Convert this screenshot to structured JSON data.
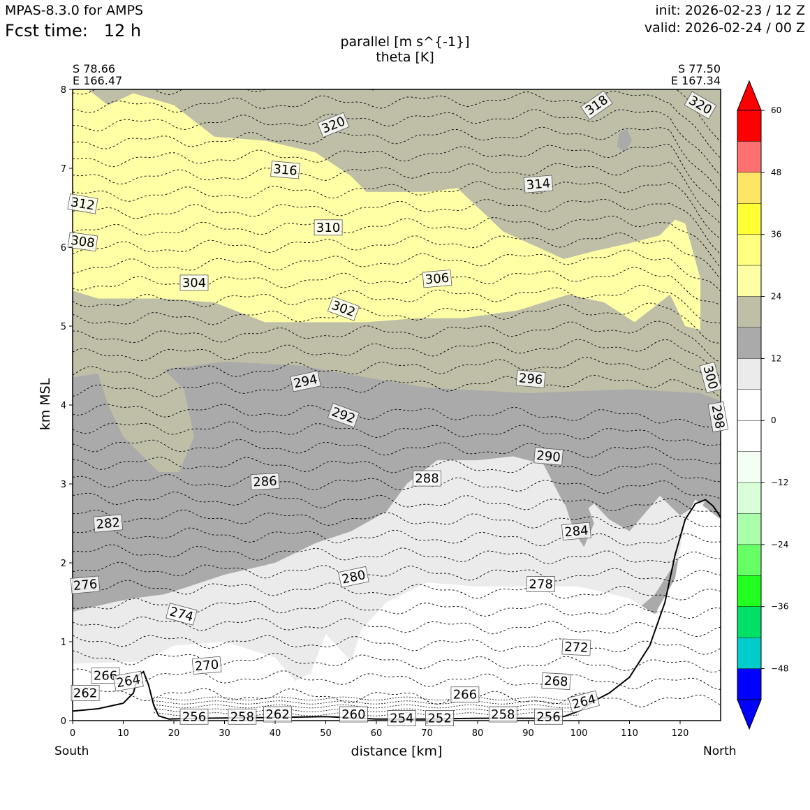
{
  "header": {
    "model": "MPAS-8.3.0 for AMPS",
    "fcst_label": "Fcst time:",
    "fcst_value": "12 h",
    "init": "init: 2026-02-23 / 12 Z",
    "valid": "valid: 2026-02-24 / 00 Z"
  },
  "endpoints": {
    "left_lat": "S 78.66",
    "left_lon": "E 166.47",
    "right_lat": "S 77.50",
    "right_lon": "E 167.34",
    "left_dir": "South",
    "right_dir": "North"
  },
  "colors": {
    "yellow": "#ffffa6",
    "tan": "#bfbfa8",
    "dark_gray": "#aaaaaa",
    "light_gray": "#ebebeb",
    "blue": "#0000ff",
    "red": "#ff0000"
  },
  "chart_data": {
    "type": "contour cross-section",
    "title": "parallel [m s^{-1}]",
    "subtitle": "theta [K]",
    "xlabel": "distance [km]",
    "ylabel": "km MSL",
    "xlim": [
      0,
      128
    ],
    "ylim": [
      0,
      8
    ],
    "xticks": [
      0,
      10,
      20,
      30,
      40,
      50,
      60,
      70,
      80,
      90,
      100,
      110,
      120
    ],
    "yticks": [
      0,
      1,
      2,
      3,
      4,
      5,
      6,
      7,
      8
    ],
    "colorbar": {
      "levels": [
        -54,
        -48,
        -42,
        -36,
        -30,
        -24,
        -18,
        -12,
        -6,
        0,
        6,
        12,
        18,
        24,
        30,
        36,
        42,
        48,
        54,
        60
      ],
      "tick_labels": [
        "60",
        "48",
        "36",
        "24",
        "12",
        "0",
        "−12",
        "−24",
        "−36",
        "−48"
      ],
      "tick_values": [
        60,
        48,
        36,
        24,
        12,
        0,
        -12,
        -24,
        -36,
        -48
      ],
      "colors": [
        "#0000ff",
        "#00cccc",
        "#00e066",
        "#20ff20",
        "#66ff66",
        "#aaffaa",
        "#d8ffd8",
        "#f2fff2",
        "#ffffff",
        "#ffffff",
        "#ebebeb",
        "#aaaaaa",
        "#bfbfa8",
        "#ffffa6",
        "#ffff80",
        "#ffff33",
        "#ffe566",
        "#ff7070",
        "#ff0000"
      ]
    },
    "terrain": [
      [
        0,
        0.12
      ],
      [
        5,
        0.15
      ],
      [
        10,
        0.22
      ],
      [
        12,
        0.35
      ],
      [
        13,
        0.58
      ],
      [
        14,
        0.62
      ],
      [
        15,
        0.45
      ],
      [
        16,
        0.2
      ],
      [
        17,
        0.06
      ],
      [
        19,
        0.02
      ],
      [
        25,
        0.03
      ],
      [
        40,
        0.04
      ],
      [
        50,
        0.05
      ],
      [
        60,
        0.02
      ],
      [
        70,
        0.02
      ],
      [
        80,
        0.03
      ],
      [
        92,
        0.03
      ],
      [
        97,
        0.05
      ],
      [
        100,
        0.12
      ],
      [
        103,
        0.25
      ],
      [
        106,
        0.35
      ],
      [
        110,
        0.55
      ],
      [
        114,
        0.95
      ],
      [
        117,
        1.5
      ],
      [
        119,
        2.1
      ],
      [
        121,
        2.55
      ],
      [
        123,
        2.75
      ],
      [
        125,
        2.8
      ],
      [
        126.5,
        2.72
      ],
      [
        128,
        2.58
      ]
    ],
    "theta_labels": [
      {
        "v": "320",
        "x": 51.5,
        "y": 7.55,
        "r": -22
      },
      {
        "v": "318",
        "x": 103.5,
        "y": 7.8,
        "r": -35
      },
      {
        "v": "320",
        "x": 124,
        "y": 7.8,
        "r": 30
      },
      {
        "v": "316",
        "x": 42,
        "y": 6.98,
        "r": 5
      },
      {
        "v": "314",
        "x": 92,
        "y": 6.8,
        "r": -5
      },
      {
        "v": "312",
        "x": 2,
        "y": 6.55,
        "r": 10
      },
      {
        "v": "310",
        "x": 50.5,
        "y": 6.25,
        "r": 0
      },
      {
        "v": "308",
        "x": 2,
        "y": 6.07,
        "r": 8
      },
      {
        "v": "306",
        "x": 72,
        "y": 5.6,
        "r": -5
      },
      {
        "v": "304",
        "x": 24,
        "y": 5.55,
        "r": 0
      },
      {
        "v": "302",
        "x": 53.5,
        "y": 5.22,
        "r": 20
      },
      {
        "v": "300",
        "x": 126,
        "y": 4.35,
        "r": 75
      },
      {
        "v": "298",
        "x": 127.5,
        "y": 3.85,
        "r": 80
      },
      {
        "v": "296",
        "x": 90.5,
        "y": 4.33,
        "r": 5
      },
      {
        "v": "294",
        "x": 46,
        "y": 4.3,
        "r": -12
      },
      {
        "v": "292",
        "x": 53.5,
        "y": 3.87,
        "r": 20
      },
      {
        "v": "290",
        "x": 94,
        "y": 3.35,
        "r": 5
      },
      {
        "v": "288",
        "x": 70,
        "y": 3.07,
        "r": 0
      },
      {
        "v": "286",
        "x": 38,
        "y": 3.03,
        "r": -3
      },
      {
        "v": "284",
        "x": 99.5,
        "y": 2.4,
        "r": -5
      },
      {
        "v": "282",
        "x": 7,
        "y": 2.5,
        "r": -5
      },
      {
        "v": "280",
        "x": 55.5,
        "y": 1.82,
        "r": -12
      },
      {
        "v": "278",
        "x": 92.5,
        "y": 1.73,
        "r": 0
      },
      {
        "v": "276",
        "x": 2.5,
        "y": 1.72,
        "r": -5
      },
      {
        "v": "274",
        "x": 21.5,
        "y": 1.35,
        "r": 15
      },
      {
        "v": "272",
        "x": 99.5,
        "y": 0.93,
        "r": 3
      },
      {
        "v": "270",
        "x": 26.5,
        "y": 0.7,
        "r": -5
      },
      {
        "v": "268",
        "x": 95.5,
        "y": 0.5,
        "r": 3
      },
      {
        "v": "266",
        "x": 6.5,
        "y": 0.57,
        "r": 0
      },
      {
        "v": "264",
        "x": 11,
        "y": 0.5,
        "r": -10
      },
      {
        "v": "262",
        "x": 2.5,
        "y": 0.35,
        "r": 0
      },
      {
        "v": "266",
        "x": 77.5,
        "y": 0.33,
        "r": 0
      },
      {
        "v": "264",
        "x": 101,
        "y": 0.24,
        "r": -15
      },
      {
        "v": "256",
        "x": 24,
        "y": 0.05,
        "r": 0
      },
      {
        "v": "258",
        "x": 33.5,
        "y": 0.05,
        "r": 0
      },
      {
        "v": "262",
        "x": 40.5,
        "y": 0.08,
        "r": 0
      },
      {
        "v": "260",
        "x": 55.5,
        "y": 0.08,
        "r": 0
      },
      {
        "v": "254",
        "x": 65,
        "y": 0.03,
        "r": 0
      },
      {
        "v": "252",
        "x": 72.5,
        "y": 0.03,
        "r": 0
      },
      {
        "v": "258",
        "x": 85,
        "y": 0.08,
        "r": 0
      },
      {
        "v": "256",
        "x": 94,
        "y": 0.05,
        "r": 0
      }
    ]
  }
}
